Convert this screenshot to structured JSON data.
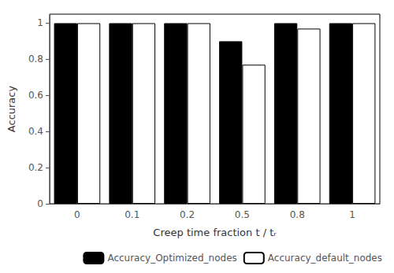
{
  "chart_data": {
    "type": "bar",
    "categories": [
      "0",
      "0.1",
      "0.2",
      "0.5",
      "0.8",
      "1"
    ],
    "series": [
      {
        "name": "Accuracy_Optimized_nodes",
        "color": "#000000",
        "values": [
          1.0,
          1.0,
          1.0,
          0.9,
          1.0,
          1.0
        ]
      },
      {
        "name": "Accuracy_default_nodes",
        "color": "#ffffff",
        "values": [
          1.0,
          1.0,
          1.0,
          0.77,
          0.97,
          1.0
        ]
      }
    ],
    "xlabel": "Creep time fraction t / tᵣ",
    "ylabel": "Accuracy",
    "ylim": [
      0,
      1.05
    ],
    "yticks": [
      0,
      0.2,
      0.4,
      0.6,
      0.8,
      1
    ],
    "grid": false,
    "legend": "lower right"
  }
}
